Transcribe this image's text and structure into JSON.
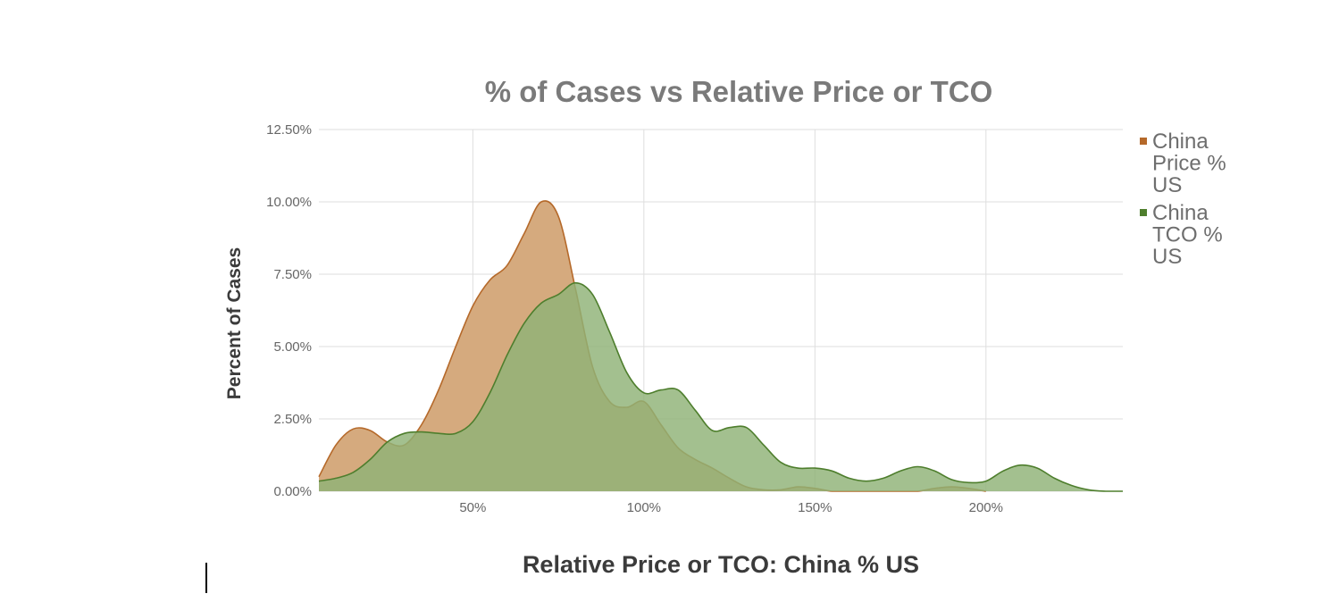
{
  "chart_data": {
    "type": "area",
    "title": "% of Cases vs  Relative Price or TCO",
    "xlabel": "Relative Price or TCO:  China % US",
    "ylabel": "Percent of Cases",
    "xlim": [
      5,
      240
    ],
    "ylim": [
      0,
      12.5
    ],
    "x_ticks": [
      50,
      100,
      150,
      200
    ],
    "x_tick_labels": [
      "50%",
      "100%",
      "150%",
      "200%"
    ],
    "y_ticks": [
      0,
      2.5,
      5,
      7.5,
      10,
      12.5
    ],
    "y_tick_labels": [
      "0.00%",
      "2.50%",
      "5.00%",
      "7.50%",
      "10.00%",
      "12.50%"
    ],
    "grid": true,
    "legend_position": "right",
    "series": [
      {
        "name": "China Price % US",
        "legend_label": [
          "China",
          "Price %",
          "US"
        ],
        "color": "#b5692a",
        "fill": "#d5aa7e",
        "x": [
          5,
          10,
          15,
          20,
          25,
          30,
          35,
          40,
          45,
          50,
          55,
          60,
          65,
          70,
          75,
          80,
          85,
          90,
          95,
          100,
          105,
          110,
          115,
          120,
          125,
          130,
          135,
          140,
          145,
          150,
          155,
          160,
          165,
          170,
          175,
          180,
          185,
          190,
          195,
          200
        ],
        "values": [
          0.5,
          1.6,
          2.15,
          2.1,
          1.7,
          1.6,
          2.3,
          3.5,
          5.0,
          6.4,
          7.3,
          7.8,
          8.9,
          10.0,
          9.5,
          7.0,
          4.3,
          3.1,
          2.9,
          3.1,
          2.3,
          1.5,
          1.1,
          0.8,
          0.45,
          0.15,
          0.05,
          0.05,
          0.15,
          0.1,
          0.0,
          0.0,
          0.0,
          0.0,
          0.0,
          0.0,
          0.1,
          0.15,
          0.1,
          0.0
        ]
      },
      {
        "name": "China TCO % US",
        "legend_label": [
          "China",
          "TCO %",
          "US"
        ],
        "color": "#4e7e2d",
        "fill": "#8fb276",
        "x": [
          5,
          10,
          15,
          20,
          25,
          30,
          35,
          40,
          45,
          50,
          55,
          60,
          65,
          70,
          75,
          80,
          85,
          90,
          95,
          100,
          105,
          110,
          115,
          120,
          125,
          130,
          135,
          140,
          145,
          150,
          155,
          160,
          165,
          170,
          175,
          180,
          185,
          190,
          195,
          200,
          205,
          210,
          215,
          220,
          225,
          230,
          235,
          240
        ],
        "values": [
          0.35,
          0.45,
          0.65,
          1.1,
          1.7,
          2.0,
          2.05,
          2.0,
          2.0,
          2.4,
          3.4,
          4.7,
          5.8,
          6.5,
          6.8,
          7.2,
          6.8,
          5.5,
          4.1,
          3.4,
          3.5,
          3.5,
          2.8,
          2.1,
          2.2,
          2.2,
          1.6,
          1.0,
          0.8,
          0.8,
          0.7,
          0.45,
          0.35,
          0.45,
          0.7,
          0.85,
          0.7,
          0.4,
          0.3,
          0.35,
          0.7,
          0.9,
          0.8,
          0.45,
          0.2,
          0.05,
          0.0,
          0.0
        ]
      }
    ]
  }
}
